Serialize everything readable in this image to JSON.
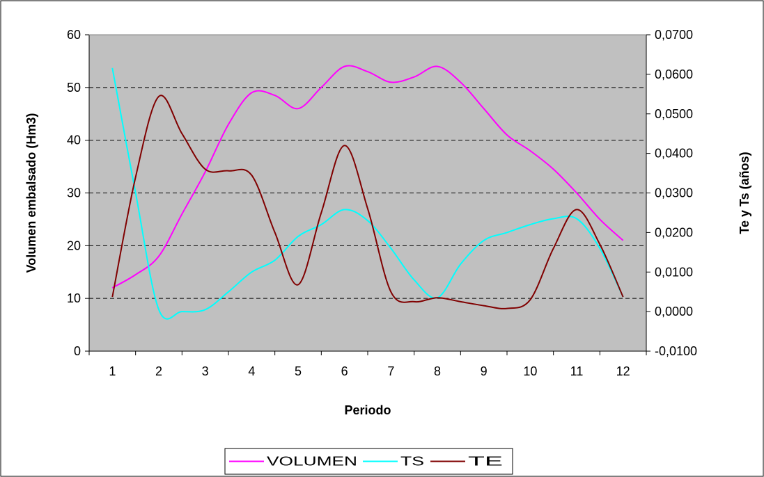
{
  "chart_data": {
    "type": "line",
    "title": "",
    "xlabel": "Periodo",
    "ylabel_left": "Volumen embalsado (Hm3)",
    "ylabel_right": "Te y Ts (años)",
    "categories": [
      "1",
      "2",
      "3",
      "4",
      "5",
      "6",
      "7",
      "8",
      "9",
      "10",
      "11",
      "12"
    ],
    "y_left": {
      "min": 0,
      "max": 60,
      "step": 10,
      "ticks": [
        "0",
        "10",
        "20",
        "30",
        "40",
        "50",
        "60"
      ]
    },
    "y_right": {
      "min": -0.01,
      "max": 0.07,
      "step": 0.01,
      "ticks": [
        "-0,0100",
        "0,0000",
        "0,0100",
        "0,0200",
        "0,0300",
        "0,0400",
        "0,0500",
        "0,0600",
        "0,0700"
      ]
    },
    "gridlines": "horizontal-dashed",
    "plot_background": "#c0c0c0",
    "legend_position": "bottom",
    "series": [
      {
        "name": "VOLUMEN",
        "axis": "left",
        "color": "#ff00ff",
        "x": [
          1,
          1.5,
          2,
          2.5,
          3,
          3.5,
          4,
          4.5,
          5,
          5.5,
          6,
          6.5,
          7,
          7.5,
          8,
          8.5,
          9,
          9.5,
          10,
          10.5,
          11,
          11.5,
          12
        ],
        "values": [
          12,
          14.5,
          18,
          26,
          34,
          43,
          49,
          48.5,
          46,
          50,
          54,
          53,
          51,
          52,
          54,
          51,
          46,
          41,
          38,
          34.5,
          30,
          25,
          21
        ]
      },
      {
        "name": "TS",
        "axis": "right",
        "color": "#00ffff",
        "x": [
          1,
          1.5,
          2,
          2.5,
          3,
          3.5,
          4,
          4.5,
          5,
          5.5,
          6,
          6.5,
          7,
          7.5,
          8,
          8.5,
          9,
          9.5,
          10,
          10.5,
          11,
          11.5,
          12
        ],
        "values": [
          0.0616,
          0.03,
          0.0005,
          0,
          0.0005,
          0.005,
          0.01,
          0.013,
          0.019,
          0.022,
          0.0258,
          0.023,
          0.016,
          0.008,
          0.0035,
          0.012,
          0.018,
          0.02,
          0.022,
          0.0235,
          0.0235,
          0.016,
          0.0037
        ]
      },
      {
        "name": "TE",
        "axis": "right",
        "color": "#800000",
        "x": [
          1,
          1.5,
          2,
          2.5,
          3,
          3.5,
          4,
          4.5,
          5,
          5.5,
          6,
          6.5,
          7,
          7.5,
          8,
          8.5,
          9,
          9.5,
          10,
          10.5,
          11,
          11.5,
          12
        ],
        "values": [
          0.0037,
          0.034,
          0.0544,
          0.045,
          0.036,
          0.0356,
          0.0345,
          0.02,
          0.0068,
          0.025,
          0.042,
          0.026,
          0.005,
          0.0025,
          0.0035,
          0.0025,
          0.0015,
          0.0008,
          0.003,
          0.016,
          0.0258,
          0.017,
          0.0037
        ]
      }
    ]
  }
}
